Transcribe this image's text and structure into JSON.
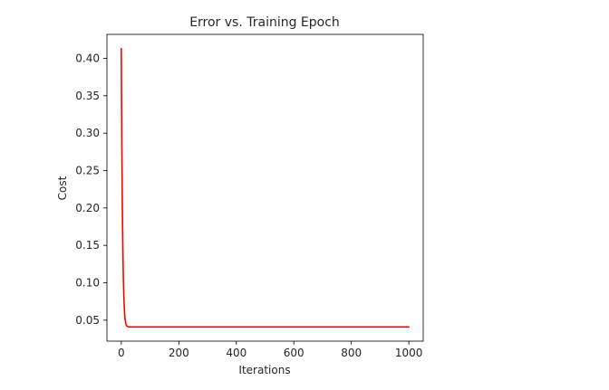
{
  "chart_data": {
    "type": "line",
    "title": "Error vs. Training Epoch",
    "xlabel": "Iterations",
    "ylabel": "Cost",
    "xlim": [
      -50,
      1050
    ],
    "ylim": [
      0.022,
      0.432
    ],
    "xticks": [
      0,
      200,
      400,
      600,
      800,
      1000
    ],
    "xtick_labels": [
      "0",
      "200",
      "400",
      "600",
      "800",
      "1000"
    ],
    "yticks": [
      0.05,
      0.1,
      0.15,
      0.2,
      0.25,
      0.3,
      0.35,
      0.4
    ],
    "ytick_labels": [
      "0.05",
      "0.10",
      "0.15",
      "0.20",
      "0.25",
      "0.30",
      "0.35",
      "0.40"
    ],
    "grid": false,
    "series": [
      {
        "color": "#ff0000",
        "x": [
          0,
          1,
          2,
          3,
          4,
          5,
          6,
          7,
          8,
          10,
          12,
          14,
          16,
          18,
          20,
          25,
          30,
          40,
          50,
          75,
          100,
          200,
          300,
          400,
          500,
          600,
          700,
          800,
          900,
          1000
        ],
        "y": [
          0.413,
          0.338,
          0.277,
          0.228,
          0.188,
          0.156,
          0.13,
          0.109,
          0.093,
          0.069,
          0.056,
          0.049,
          0.045,
          0.043,
          0.042,
          0.041,
          0.041,
          0.041,
          0.041,
          0.041,
          0.041,
          0.041,
          0.041,
          0.041,
          0.041,
          0.041,
          0.041,
          0.041,
          0.041,
          0.041
        ]
      }
    ]
  }
}
